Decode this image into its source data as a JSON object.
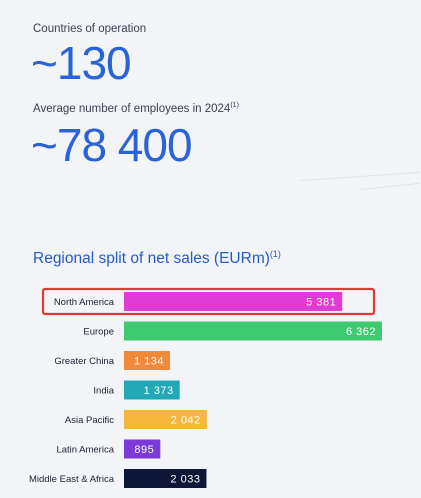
{
  "stats": {
    "countries_label": "Countries of operation",
    "countries_value": "~130",
    "employees_label": "Average number of employees in 2024",
    "employees_note": "(1)",
    "employees_value": "~78 400"
  },
  "chart_title": "Regional split of net sales (EURm)",
  "chart_title_note": "(1)",
  "highlight_category": "North America",
  "highlight_color": "#e23a3a",
  "chart_data": {
    "type": "bar",
    "orientation": "horizontal",
    "title": "Regional split of net sales (EURm)",
    "categories": [
      "North America",
      "Europe",
      "Greater China",
      "India",
      "Asia Pacific",
      "Latin America",
      "Middle East & Africa"
    ],
    "values": [
      5381,
      6362,
      1134,
      1373,
      2042,
      895,
      2033
    ],
    "value_labels": [
      "5 381",
      "6 362",
      "1 134",
      "1 373",
      "2 042",
      "895",
      "2 033"
    ],
    "colors": [
      "#e03bd3",
      "#3ecb70",
      "#f08a3a",
      "#23a8b7",
      "#f6b73c",
      "#7c3bd8",
      "#0d1738"
    ],
    "xlim": [
      0,
      6362
    ],
    "grid": false,
    "legend": "none"
  }
}
